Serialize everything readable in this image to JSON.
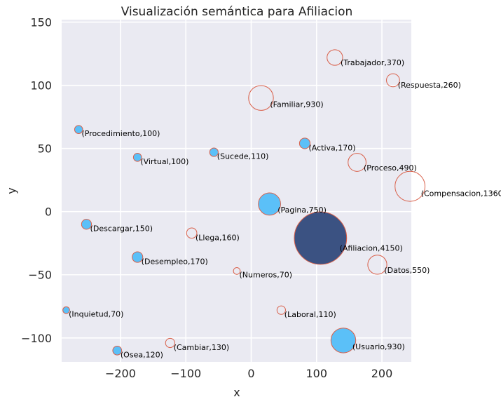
{
  "chart_data": {
    "type": "scatter",
    "title": "Visualización semántica para Afiliacion",
    "xlabel": "x",
    "ylabel": "y",
    "xlim": [
      -290,
      245
    ],
    "ylim": [
      -119,
      152
    ],
    "xticks": [
      -200,
      -100,
      0,
      100,
      200
    ],
    "yticks": [
      -100,
      -50,
      0,
      50,
      100,
      150
    ],
    "xtick_labels": [
      "−200",
      "−100",
      "0",
      "100",
      "200"
    ],
    "ytick_labels": [
      "−100",
      "−50",
      "0",
      "50",
      "100",
      "150"
    ],
    "grid": true,
    "colors": {
      "background": "#eaeaf2",
      "filled": "#5bc0f8",
      "center": "#3b5282",
      "edge": "#d9604a"
    },
    "points": [
      {
        "word": "Afiliacion",
        "value": 4150,
        "x": 106,
        "y": -21,
        "style": "center",
        "label": "(Afiliacion,4150)"
      },
      {
        "word": "Trabajador",
        "value": 370,
        "x": 128,
        "y": 122,
        "style": "hollow",
        "label": "(Trabajador,370)"
      },
      {
        "word": "Respuesta",
        "value": 260,
        "x": 217,
        "y": 104,
        "style": "hollow",
        "label": "(Respuesta,260)"
      },
      {
        "word": "Familiar",
        "value": 930,
        "x": 15,
        "y": 90,
        "style": "hollow",
        "label": "(Familiar,930)"
      },
      {
        "word": "Procedimiento",
        "value": 100,
        "x": -264,
        "y": 65,
        "style": "filled",
        "label": "(Procedimiento,100)"
      },
      {
        "word": "Activa",
        "value": 170,
        "x": 82,
        "y": 54,
        "style": "filled",
        "label": "(Activa,170)"
      },
      {
        "word": "Sucede",
        "value": 110,
        "x": -57,
        "y": 47,
        "style": "filled",
        "label": "(Sucede,110)"
      },
      {
        "word": "Virtual",
        "value": 100,
        "x": -174,
        "y": 43,
        "style": "filled",
        "label": "(Virtual,100)"
      },
      {
        "word": "Proceso",
        "value": 490,
        "x": 162,
        "y": 39,
        "style": "hollow",
        "label": "(Proceso,490)"
      },
      {
        "word": "Compensacion",
        "value": 1360,
        "x": 243,
        "y": 20,
        "style": "hollow",
        "label": "(Compensacion,1360)"
      },
      {
        "word": "Pagina",
        "value": 750,
        "x": 28,
        "y": 6,
        "style": "filled",
        "label": "(Pagina,750)"
      },
      {
        "word": "Descargar",
        "value": 150,
        "x": -252,
        "y": -10,
        "style": "filled",
        "label": "(Descargar,150)"
      },
      {
        "word": "Llega",
        "value": 160,
        "x": -91,
        "y": -17,
        "style": "hollow",
        "label": "(Llega,160)"
      },
      {
        "word": "Desempleo",
        "value": 170,
        "x": -174,
        "y": -36,
        "style": "filled",
        "label": "(Desempleo,170)"
      },
      {
        "word": "Datos",
        "value": 550,
        "x": 193,
        "y": -42,
        "style": "hollow",
        "label": "(Datos,550)"
      },
      {
        "word": "Numeros",
        "value": 70,
        "x": -22,
        "y": -47,
        "style": "hollow",
        "label": "(Numeros,70)"
      },
      {
        "word": "Inquietud",
        "value": 70,
        "x": -283,
        "y": -78,
        "style": "filled",
        "label": "(Inquietud,70)"
      },
      {
        "word": "Laboral",
        "value": 110,
        "x": 46,
        "y": -78,
        "style": "hollow",
        "label": "(Laboral,110)"
      },
      {
        "word": "Usuario",
        "value": 930,
        "x": 141,
        "y": -102,
        "style": "filled",
        "label": "(Usuario,930)"
      },
      {
        "word": "Cambiar",
        "value": 130,
        "x": -124,
        "y": -104,
        "style": "hollow",
        "label": "(Cambiar,130)"
      },
      {
        "word": "Osea",
        "value": 120,
        "x": -205,
        "y": -110,
        "style": "filled",
        "label": "(Osea,120)"
      }
    ]
  }
}
